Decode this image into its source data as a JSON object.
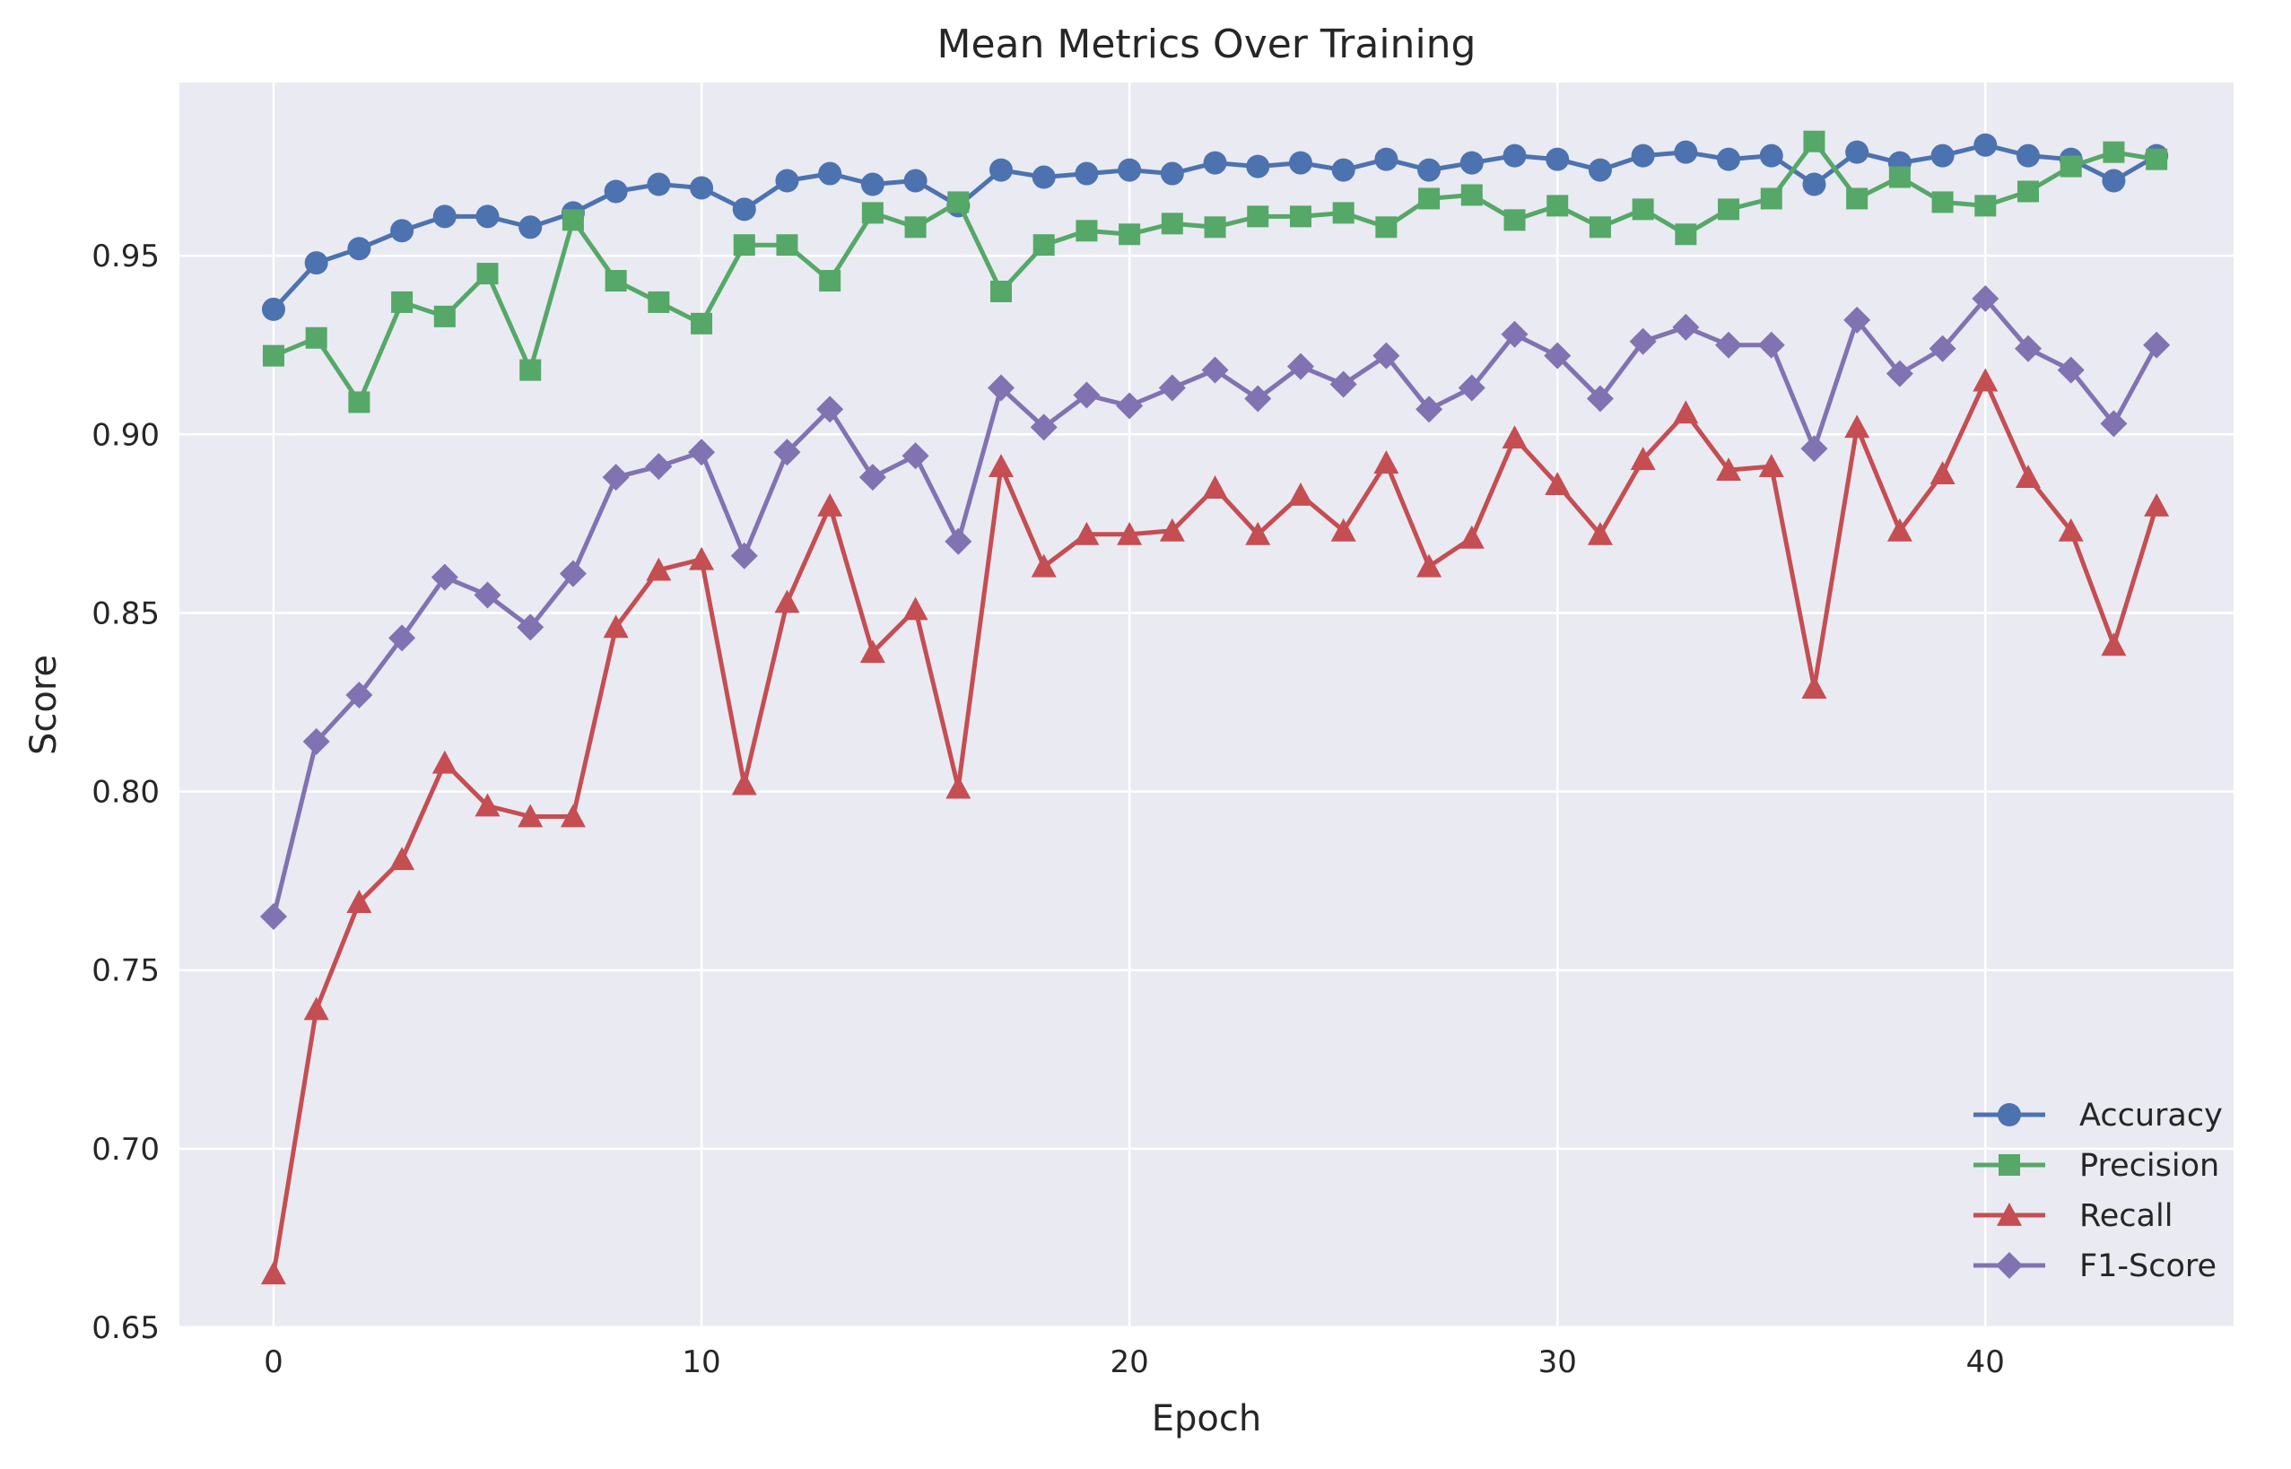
{
  "chart_data": {
    "type": "line",
    "title": "Mean Metrics Over Training",
    "xlabel": "Epoch",
    "ylabel": "Score",
    "xlim": [
      -2.2,
      45.8
    ],
    "ylim": [
      0.65,
      0.9985
    ],
    "xticks": [
      0,
      10,
      20,
      30,
      40
    ],
    "yticks": [
      0.65,
      0.7,
      0.75,
      0.8,
      0.85,
      0.9,
      0.95
    ],
    "xtick_labels": [
      "0",
      "10",
      "20",
      "30",
      "40"
    ],
    "ytick_labels": [
      "0.65",
      "0.70",
      "0.75",
      "0.80",
      "0.85",
      "0.90",
      "0.95"
    ],
    "grid": true,
    "legend_position": "bottom-right",
    "x": [
      0,
      1,
      2,
      3,
      4,
      5,
      6,
      7,
      8,
      9,
      10,
      11,
      12,
      13,
      14,
      15,
      16,
      17,
      18,
      19,
      20,
      21,
      22,
      23,
      24,
      25,
      26,
      27,
      28,
      29,
      30,
      31,
      32,
      33,
      34,
      35,
      36,
      37,
      38,
      39,
      40,
      41,
      42,
      43,
      44
    ],
    "series": [
      {
        "name": "Accuracy",
        "color": "#4c72b0",
        "marker": "circle",
        "values": [
          0.935,
          0.948,
          0.952,
          0.957,
          0.961,
          0.961,
          0.958,
          0.962,
          0.968,
          0.97,
          0.969,
          0.963,
          0.971,
          0.973,
          0.97,
          0.971,
          0.964,
          0.974,
          0.972,
          0.973,
          0.974,
          0.973,
          0.976,
          0.975,
          0.976,
          0.974,
          0.977,
          0.974,
          0.976,
          0.978,
          0.977,
          0.974,
          0.978,
          0.979,
          0.977,
          0.978,
          0.97,
          0.979,
          0.976,
          0.978,
          0.981,
          0.978,
          0.977,
          0.971,
          0.978
        ]
      },
      {
        "name": "Precision",
        "color": "#55a868",
        "marker": "square",
        "values": [
          0.922,
          0.927,
          0.909,
          0.937,
          0.933,
          0.945,
          0.918,
          0.96,
          0.943,
          0.937,
          0.931,
          0.953,
          0.953,
          0.943,
          0.962,
          0.958,
          0.965,
          0.94,
          0.953,
          0.957,
          0.956,
          0.959,
          0.958,
          0.961,
          0.961,
          0.962,
          0.958,
          0.966,
          0.967,
          0.96,
          0.964,
          0.958,
          0.963,
          0.956,
          0.963,
          0.966,
          0.982,
          0.966,
          0.972,
          0.965,
          0.964,
          0.968,
          0.975,
          0.979,
          0.977
        ]
      },
      {
        "name": "Recall",
        "color": "#c44e52",
        "marker": "triangle",
        "values": [
          0.665,
          0.739,
          0.769,
          0.781,
          0.808,
          0.796,
          0.793,
          0.793,
          0.846,
          0.862,
          0.865,
          0.802,
          0.853,
          0.88,
          0.839,
          0.851,
          0.801,
          0.891,
          0.863,
          0.872,
          0.872,
          0.873,
          0.885,
          0.872,
          0.883,
          0.873,
          0.892,
          0.863,
          0.871,
          0.899,
          0.886,
          0.872,
          0.893,
          0.906,
          0.89,
          0.891,
          0.829,
          0.902,
          0.873,
          0.889,
          0.915,
          0.888,
          0.873,
          0.841,
          0.88
        ]
      },
      {
        "name": "F1-Score",
        "color": "#8172b2",
        "marker": "diamond",
        "values": [
          0.765,
          0.814,
          0.827,
          0.843,
          0.86,
          0.855,
          0.846,
          0.861,
          0.888,
          0.891,
          0.895,
          0.866,
          0.895,
          0.907,
          0.888,
          0.894,
          0.87,
          0.913,
          0.902,
          0.911,
          0.908,
          0.913,
          0.918,
          0.91,
          0.919,
          0.914,
          0.922,
          0.907,
          0.913,
          0.928,
          0.922,
          0.91,
          0.926,
          0.93,
          0.925,
          0.925,
          0.896,
          0.932,
          0.917,
          0.924,
          0.938,
          0.924,
          0.918,
          0.903,
          0.925
        ]
      }
    ]
  }
}
